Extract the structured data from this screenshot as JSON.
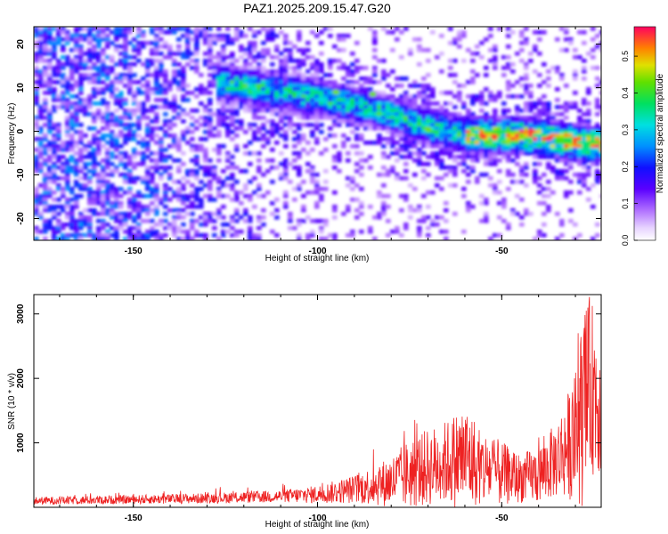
{
  "title": "PAZ1.2025.209.15.47.G20",
  "chart_data": [
    {
      "type": "heatmap",
      "xlabel": "Height of straight line (km)",
      "ylabel": "Frequency (Hz)",
      "xlim": [
        -177,
        -23
      ],
      "ylim": [
        -25,
        24
      ],
      "xticks": [
        -150,
        -100,
        -50
      ],
      "xtick_labels": [
        "-150",
        "-100",
        "-50"
      ],
      "yticks": [
        20,
        10,
        0,
        -10,
        -20
      ],
      "ytick_labels": [
        "20",
        "10",
        "0",
        "-10",
        "-20"
      ],
      "colorbar": {
        "label": "Normalized spectral amplitude",
        "range": [
          0.0,
          0.58
        ],
        "ticks": [
          0.0,
          0.1,
          0.2,
          0.3,
          0.4,
          0.5
        ],
        "tick_labels": [
          "0.0",
          "0.1",
          "0.2",
          "0.3",
          "0.4",
          "0.5"
        ],
        "colormap": "rainbow (white-violet-blue-cyan-green-yellow-red)"
      },
      "ridge": {
        "description": "high-amplitude band descending with height",
        "points": [
          [
            -125,
            11
          ],
          [
            -110,
            9
          ],
          [
            -95,
            7
          ],
          [
            -80,
            4
          ],
          [
            -70,
            1
          ],
          [
            -58,
            -1
          ],
          [
            -45,
            -1
          ],
          [
            -35,
            -2
          ],
          [
            -25,
            -3
          ]
        ]
      },
      "colors": {
        "low": "#e6d2ff",
        "mid": "#5a00ff",
        "high": "#ff0044"
      }
    },
    {
      "type": "line",
      "xlabel": "Height of straight line (km)",
      "ylabel": "SNR (10 * v/v)",
      "xlim": [
        -177,
        -23
      ],
      "ylim": [
        0,
        3300
      ],
      "xticks": [
        -150,
        -100,
        -50
      ],
      "xtick_labels": [
        "-150",
        "-100",
        "-50"
      ],
      "yticks": [
        1000,
        2000,
        3000
      ],
      "ytick_labels": [
        "1000",
        "2000",
        "3000"
      ],
      "line_color": "#ee2222",
      "envelope": {
        "x": [
          -177,
          -150,
          -130,
          -110,
          -100,
          -90,
          -80,
          -75,
          -70,
          -65,
          -60,
          -55,
          -50,
          -45,
          -40,
          -35,
          -30,
          -28,
          -26,
          -24,
          -23
        ],
        "mean": [
          100,
          120,
          140,
          170,
          200,
          280,
          400,
          520,
          620,
          700,
          780,
          600,
          520,
          450,
          500,
          750,
          1100,
          1500,
          1900,
          1700,
          1500
        ],
        "amplitude": [
          60,
          70,
          80,
          100,
          140,
          220,
          400,
          550,
          600,
          650,
          850,
          600,
          500,
          380,
          450,
          600,
          1000,
          1500,
          1400,
          1200,
          1000
        ]
      }
    }
  ]
}
